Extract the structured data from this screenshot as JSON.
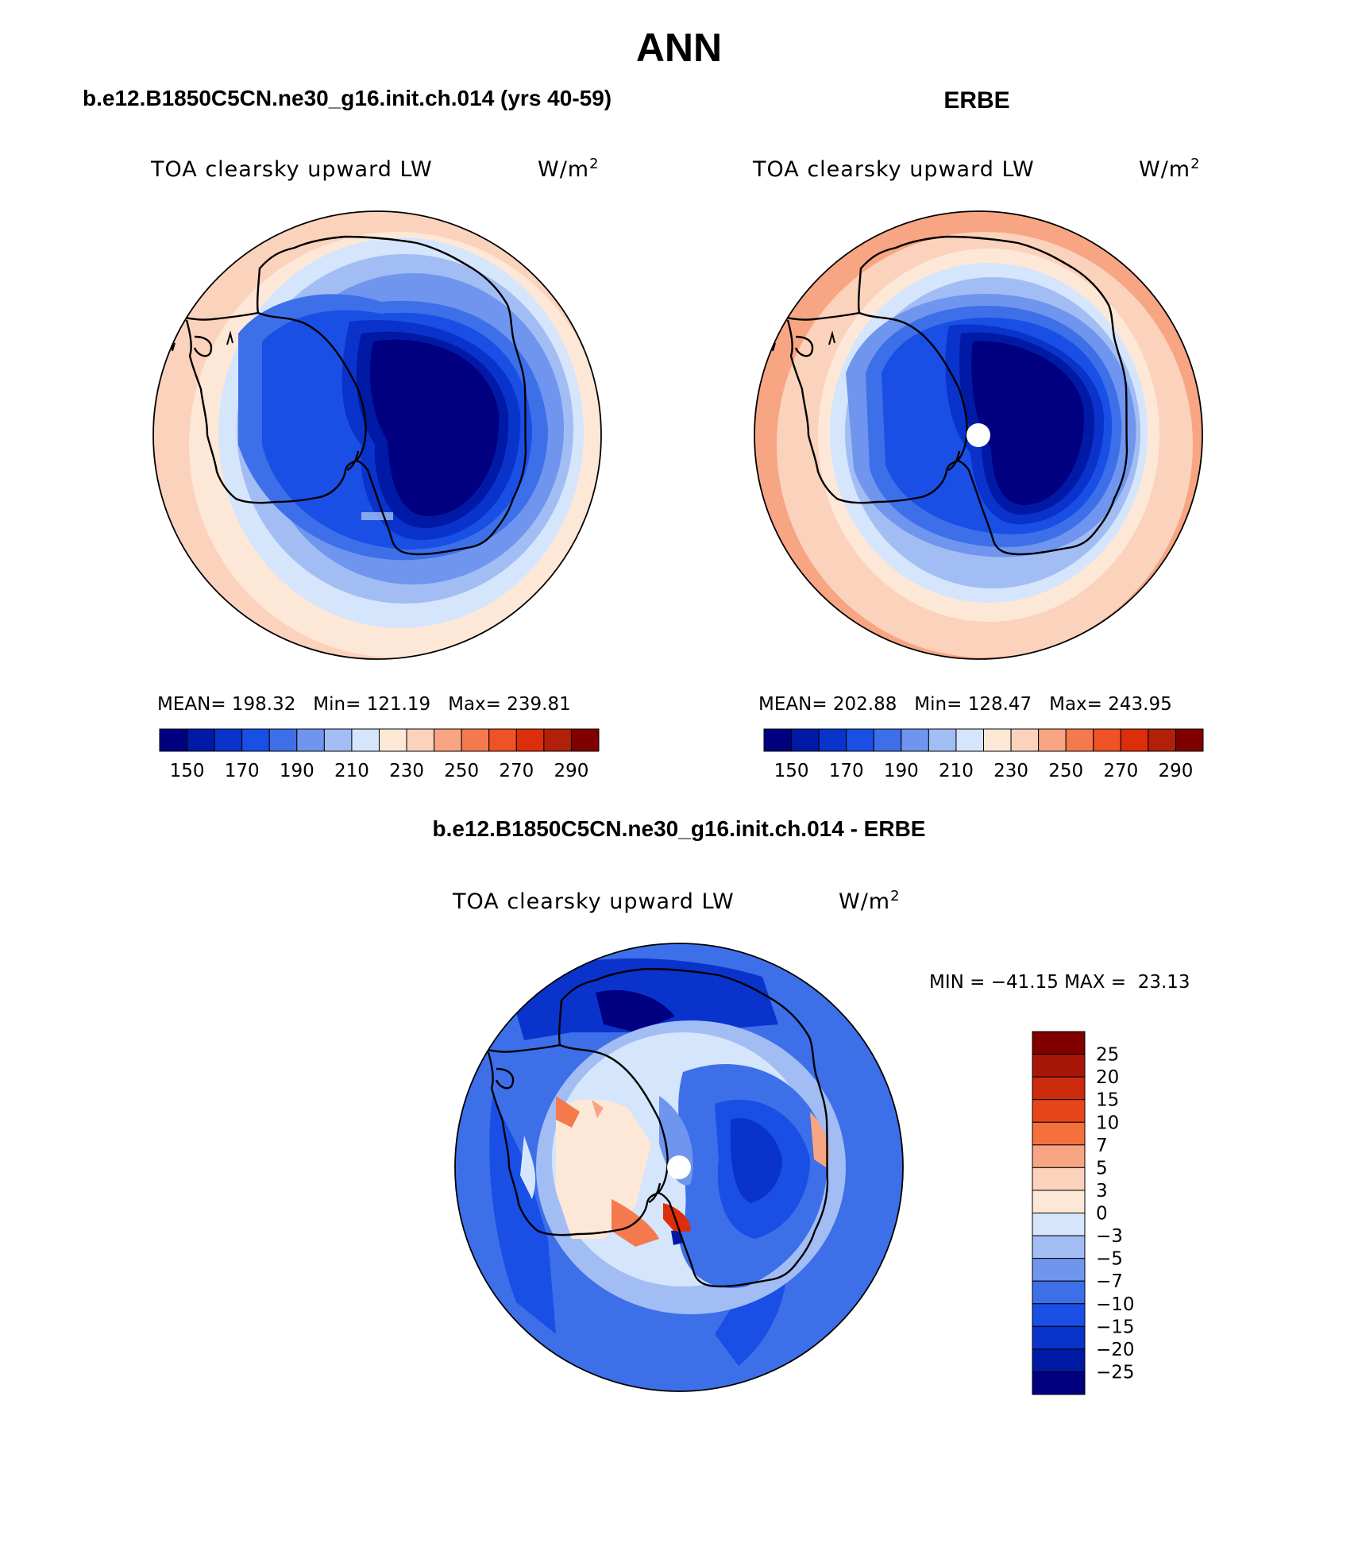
{
  "page": {
    "season": "ANN"
  },
  "panels": [
    {
      "id": "model",
      "title": "b.e12.B1850C5CN.ne30_g16.init.ch.014 (yrs 40-59)",
      "variable": "TOA clearsky upward LW",
      "units": "W/m",
      "units_superscript": "2",
      "stats": "MEAN= 198.32   Min= 121.19   Max= 239.81",
      "colorbar_labels": [
        "150",
        "170",
        "190",
        "210",
        "230",
        "250",
        "270",
        "290"
      ],
      "has_pole_hole": false
    },
    {
      "id": "obs",
      "title": "ERBE",
      "variable": "TOA clearsky upward LW",
      "units": "W/m",
      "units_superscript": "2",
      "stats": "MEAN= 202.88   Min= 128.47   Max= 243.95",
      "colorbar_labels": [
        "150",
        "170",
        "190",
        "210",
        "230",
        "250",
        "270",
        "290"
      ],
      "has_pole_hole": true
    }
  ],
  "diff": {
    "title": "b.e12.B1850C5CN.ne30_g16.init.ch.014 - ERBE",
    "variable": "TOA clearsky upward LW",
    "units": "W/m",
    "units_superscript": "2",
    "minmax": "MIN = −41.15 MAX =  23.13",
    "colorbar_labels": [
      "25",
      "20",
      "15",
      "10",
      "7",
      "5",
      "3",
      "0",
      "−3",
      "−5",
      "−7",
      "−10",
      "−15",
      "−20",
      "−25"
    ]
  },
  "colors": {
    "abs_scale": [
      "#000080",
      "#001aa6",
      "#0a33cc",
      "#1a4fe6",
      "#3d6fe8",
      "#6f95ee",
      "#a2bdf4",
      "#d5e5fb",
      "#fde8d8",
      "#fbd2bc",
      "#f8a583",
      "#f47a4e",
      "#ee5226",
      "#dd2e0c",
      "#b3200a",
      "#800000"
    ],
    "diff_scale": [
      "#800000",
      "#a8160a",
      "#cc2a0c",
      "#e8451a",
      "#f5703c",
      "#f8a583",
      "#fbd2bc",
      "#fde8d8",
      "#d5e5fb",
      "#a2bdf4",
      "#6f95ee",
      "#3d6fe8",
      "#1a4fe6",
      "#0a33cc",
      "#001aa6",
      "#000080"
    ]
  }
}
